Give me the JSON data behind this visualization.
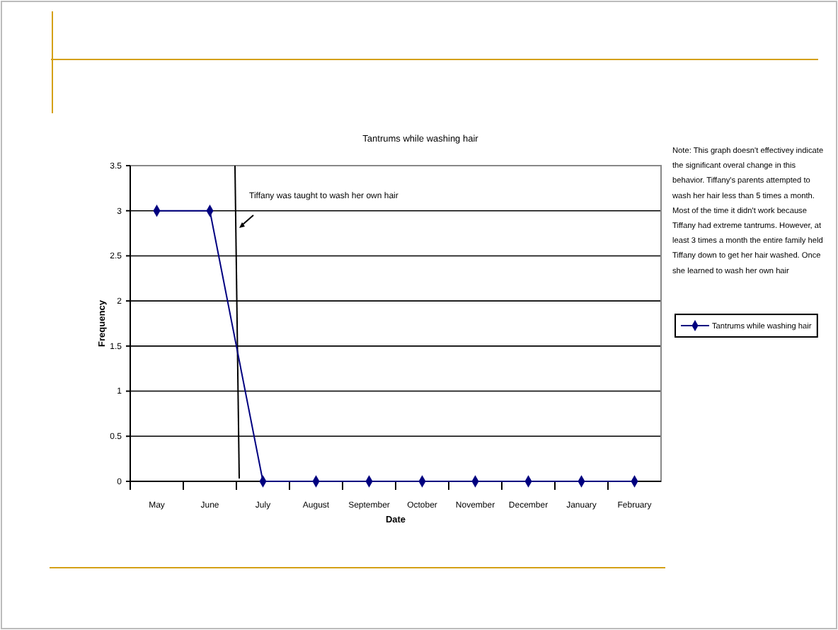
{
  "chart_data": {
    "type": "line",
    "title": "Tantrums while washing hair",
    "xlabel": "Date",
    "ylabel": "Frequency",
    "categories": [
      "May",
      "June",
      "July",
      "August",
      "September",
      "October",
      "November",
      "December",
      "January",
      "February"
    ],
    "series": [
      {
        "name": "Tantrums while washing hair",
        "color": "#000080",
        "values": [
          3,
          3,
          0,
          0,
          0,
          0,
          0,
          0,
          0,
          0
        ]
      }
    ],
    "ylim": [
      0,
      3.5
    ],
    "yticks": [
      0,
      0.5,
      1,
      1.5,
      2,
      2.5,
      3,
      3.5
    ],
    "grid": "y",
    "legend": "right",
    "marker": "diamond",
    "line_style": "solid",
    "annotations": [
      "Tiffany was taught to wash her own hair",
      "Note: This graph doesn't effectivey indicate the significant overal change in this behavior. Tiffany's parents attempted to wash her hair less than 5 times a month. Most of the time it didn't work because Tiffany had extreme tantrums. However, at least 3 times a month the entire family held Tiffany down to get her hair washed. Once she learned to wash her own hair"
    ]
  }
}
